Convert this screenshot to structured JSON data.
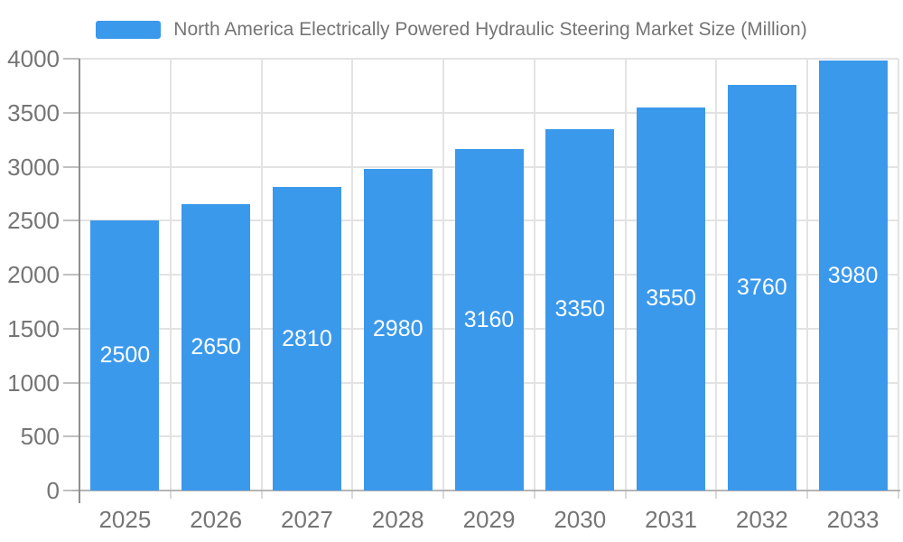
{
  "chart_data": {
    "type": "bar",
    "title": "North America Electrically Powered Hydraulic Steering Market Size (Million)",
    "categories": [
      "2025",
      "2026",
      "2027",
      "2028",
      "2029",
      "2030",
      "2031",
      "2032",
      "2033"
    ],
    "values": [
      2500,
      2650,
      2810,
      2980,
      3160,
      3350,
      3550,
      3760,
      3980
    ],
    "xlabel": "",
    "ylabel": "",
    "ylim": [
      0,
      4000
    ],
    "yticks": [
      0,
      500,
      1000,
      1500,
      2000,
      2500,
      3000,
      3500,
      4000
    ],
    "grid": true,
    "legend_position": "top",
    "value_labels": "inside-center"
  },
  "colors": {
    "bar": "#3b99ec",
    "value_label": "#ffffff",
    "grid": "#e3e3e3",
    "y_axis_line": "#8f8f8f",
    "baseline": "#b5b5b5",
    "tick": "#c0c0c0",
    "below_tick": "#d9d9d9",
    "axis_text": "#757575",
    "background": "#ffffff"
  }
}
